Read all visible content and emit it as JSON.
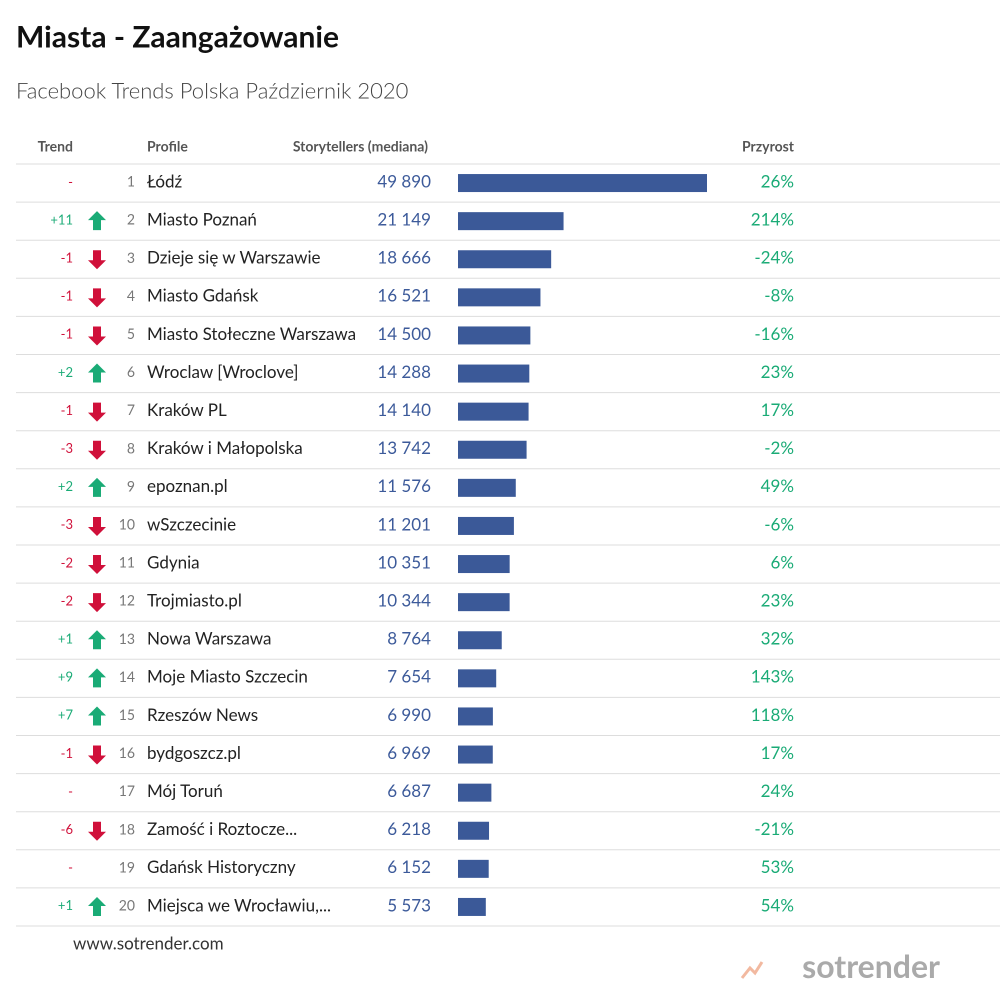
{
  "header": {
    "title": "Miasta - Zaangażowanie",
    "subtitle": "Facebook Trends Polska Październik 2020"
  },
  "columns": {
    "trend": "Trend",
    "profile": "Profile",
    "storytellers": "Storytellers (mediana)",
    "growth": "Przyrost"
  },
  "rows": [
    {
      "trend": "-",
      "rank": 1,
      "profile": "Łódź",
      "storytellers": 49890,
      "storytellers_label": "49 890",
      "growth": "26%"
    },
    {
      "trend": "+11",
      "rank": 2,
      "profile": "Miasto Poznań",
      "storytellers": 21149,
      "storytellers_label": "21 149",
      "growth": "214%"
    },
    {
      "trend": "-1",
      "rank": 3,
      "profile": "Dzieje się w Warszawie",
      "storytellers": 18666,
      "storytellers_label": "18 666",
      "growth": "-24%"
    },
    {
      "trend": "-1",
      "rank": 4,
      "profile": "Miasto Gdańsk",
      "storytellers": 16521,
      "storytellers_label": "16 521",
      "growth": "-8%"
    },
    {
      "trend": "-1",
      "rank": 5,
      "profile": "Miasto Stołeczne Warszawa",
      "storytellers": 14500,
      "storytellers_label": "14 500",
      "growth": "-16%"
    },
    {
      "trend": "+2",
      "rank": 6,
      "profile": "Wroclaw [Wroclove]",
      "storytellers": 14288,
      "storytellers_label": "14 288",
      "growth": "23%"
    },
    {
      "trend": "-1",
      "rank": 7,
      "profile": "Kraków PL",
      "storytellers": 14140,
      "storytellers_label": "14 140",
      "growth": "17%"
    },
    {
      "trend": "-3",
      "rank": 8,
      "profile": "Kraków i Małopolska",
      "storytellers": 13742,
      "storytellers_label": "13 742",
      "growth": "-2%"
    },
    {
      "trend": "+2",
      "rank": 9,
      "profile": "epoznan.pl",
      "storytellers": 11576,
      "storytellers_label": "11 576",
      "growth": "49%"
    },
    {
      "trend": "-3",
      "rank": 10,
      "profile": "wSzczecinie",
      "storytellers": 11201,
      "storytellers_label": "11 201",
      "growth": "-6%"
    },
    {
      "trend": "-2",
      "rank": 11,
      "profile": "Gdynia",
      "storytellers": 10351,
      "storytellers_label": "10 351",
      "growth": "6%"
    },
    {
      "trend": "-2",
      "rank": 12,
      "profile": "Trojmiasto.pl",
      "storytellers": 10344,
      "storytellers_label": "10 344",
      "growth": "23%"
    },
    {
      "trend": "+1",
      "rank": 13,
      "profile": "Nowa Warszawa",
      "storytellers": 8764,
      "storytellers_label": "8 764",
      "growth": "32%"
    },
    {
      "trend": "+9",
      "rank": 14,
      "profile": "Moje Miasto Szczecin",
      "storytellers": 7654,
      "storytellers_label": "7 654",
      "growth": "143%"
    },
    {
      "trend": "+7",
      "rank": 15,
      "profile": "Rzeszów News",
      "storytellers": 6990,
      "storytellers_label": "6 990",
      "growth": "118%"
    },
    {
      "trend": "-1",
      "rank": 16,
      "profile": "bydgoszcz.pl",
      "storytellers": 6969,
      "storytellers_label": "6 969",
      "growth": "17%"
    },
    {
      "trend": "-",
      "rank": 17,
      "profile": "Mój Toruń",
      "storytellers": 6687,
      "storytellers_label": "6 687",
      "growth": "24%"
    },
    {
      "trend": "-6",
      "rank": 18,
      "profile": "Zamość i Roztocze...",
      "storytellers": 6218,
      "storytellers_label": "6 218",
      "growth": "-21%"
    },
    {
      "trend": "-",
      "rank": 19,
      "profile": "Gdańsk Historyczny",
      "storytellers": 6152,
      "storytellers_label": "6 152",
      "growth": "53%"
    },
    {
      "trend": "+1",
      "rank": 20,
      "profile": "Miejsca we Wrocławiu,...",
      "storytellers": 5573,
      "storytellers_label": "5 573",
      "growth": "54%"
    }
  ],
  "footer": {
    "url": "www.sotrender.com",
    "logo": "sotrender"
  }
}
